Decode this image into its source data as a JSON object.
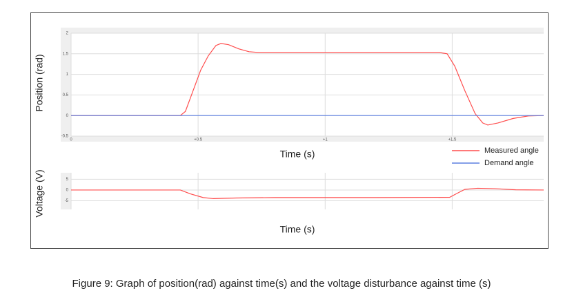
{
  "chart_data": [
    {
      "type": "line",
      "y_label": "Position (rad)",
      "x_label": "Time (s)",
      "x": [
        0,
        0.43,
        0.45,
        0.48,
        0.51,
        0.54,
        0.57,
        0.59,
        0.62,
        0.66,
        0.7,
        0.74,
        1.0,
        1.45,
        1.48,
        1.51,
        1.55,
        1.59,
        1.62,
        1.64,
        1.68,
        1.74,
        1.8,
        1.86
      ],
      "series": [
        {
          "name": "Measured angle",
          "color": "#ff4d4d",
          "values": [
            0,
            0,
            0.1,
            0.6,
            1.1,
            1.45,
            1.7,
            1.75,
            1.72,
            1.62,
            1.55,
            1.53,
            1.53,
            1.53,
            1.5,
            1.2,
            0.6,
            0.05,
            -0.18,
            -0.23,
            -0.18,
            -0.07,
            -0.01,
            0
          ]
        },
        {
          "name": "Demand angle",
          "color": "#5b7fe0",
          "values": [
            0,
            0,
            0,
            0,
            0,
            0,
            0,
            0,
            0,
            0,
            0,
            0,
            0,
            0,
            0,
            0,
            0,
            0,
            0,
            0,
            0,
            0,
            0,
            0
          ]
        }
      ],
      "xlim": [
        0,
        1.86
      ],
      "xticks": [
        0,
        {
          "value": 0.5,
          "label": "+0.5"
        },
        {
          "value": 1,
          "label": "+1"
        },
        {
          "value": 1.5,
          "label": "+1.5"
        }
      ],
      "ylim": [
        -0.5,
        2
      ],
      "yticks": [
        -0.5,
        0,
        0.5,
        1,
        1.5,
        2
      ],
      "grid": true,
      "legend": "below-right"
    },
    {
      "type": "line",
      "y_label": "Voltage (V)",
      "x_label": "Time (s)",
      "x": [
        0,
        0.43,
        0.47,
        0.52,
        0.56,
        0.65,
        0.8,
        1.2,
        1.49,
        1.52,
        1.55,
        1.6,
        1.67,
        1.75,
        1.86
      ],
      "series": [
        {
          "color": "#ff4d4d",
          "values": [
            0,
            0,
            -1.8,
            -3.5,
            -4,
            -3.7,
            -3.5,
            -3.5,
            -3.4,
            -1.5,
            0.3,
            0.8,
            0.6,
            0.1,
            0
          ]
        }
      ],
      "xlim": [
        0,
        1.86
      ],
      "ylim": [
        -9,
        8
      ],
      "yticks": [
        -5,
        0,
        5
      ],
      "grid": true
    }
  ],
  "caption": "Figure 9: Graph of position(rad) against time(s) and the voltage disturbance against time (s)"
}
